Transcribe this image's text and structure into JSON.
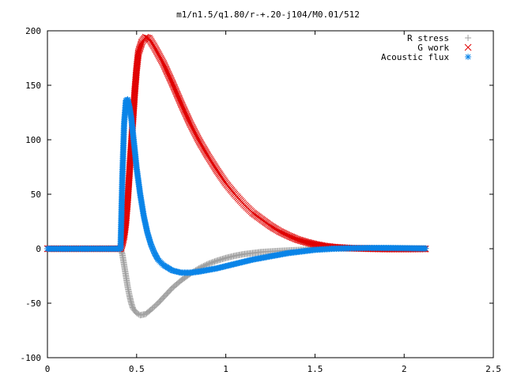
{
  "chart_data": {
    "type": "scatter",
    "title": "m1/n1.5/q1.80/r-+.20-j104/M0.01/512",
    "xlabel": "",
    "ylabel": "",
    "xlim": [
      0,
      2.5
    ],
    "ylim": [
      -100,
      200
    ],
    "x_ticks": [
      0,
      0.5,
      1,
      1.5,
      2,
      2.5
    ],
    "x_tick_labels": [
      "0",
      "0.5",
      "1",
      "1.5",
      "2",
      "2.5"
    ],
    "y_ticks": [
      -100,
      -50,
      0,
      50,
      100,
      150,
      200
    ],
    "y_tick_labels": [
      "-100",
      "-50",
      "0",
      "50",
      "100",
      "150",
      "200"
    ],
    "grid": false,
    "legend_position": "top-right",
    "series": [
      {
        "name": "R stress",
        "marker": "plus",
        "color": "#a0a0a0",
        "points": [
          [
            0.0,
            0
          ],
          [
            0.2,
            0
          ],
          [
            0.41,
            0
          ],
          [
            0.42,
            -5
          ],
          [
            0.43,
            -15
          ],
          [
            0.44,
            -25
          ],
          [
            0.45,
            -35
          ],
          [
            0.46,
            -43
          ],
          [
            0.47,
            -50
          ],
          [
            0.48,
            -55
          ],
          [
            0.5,
            -59
          ],
          [
            0.52,
            -61
          ],
          [
            0.55,
            -60
          ],
          [
            0.58,
            -56
          ],
          [
            0.62,
            -50
          ],
          [
            0.66,
            -43
          ],
          [
            0.7,
            -36
          ],
          [
            0.75,
            -29
          ],
          [
            0.8,
            -23
          ],
          [
            0.85,
            -18
          ],
          [
            0.9,
            -14
          ],
          [
            0.95,
            -11
          ],
          [
            1.0,
            -8.5
          ],
          [
            1.05,
            -6.5
          ],
          [
            1.1,
            -5
          ],
          [
            1.15,
            -4
          ],
          [
            1.2,
            -3
          ],
          [
            1.3,
            -2
          ],
          [
            1.4,
            -1.2
          ],
          [
            1.5,
            -0.5
          ],
          [
            1.6,
            0
          ],
          [
            1.7,
            0.3
          ],
          [
            1.8,
            0.4
          ],
          [
            1.9,
            0.4
          ],
          [
            2.0,
            0.3
          ],
          [
            2.1,
            0.2
          ],
          [
            2.12,
            0.2
          ]
        ]
      },
      {
        "name": "G work",
        "marker": "cross",
        "color": "#e00000",
        "points": [
          [
            0.0,
            0
          ],
          [
            0.2,
            0
          ],
          [
            0.41,
            0
          ],
          [
            0.42,
            5
          ],
          [
            0.43,
            12
          ],
          [
            0.44,
            25
          ],
          [
            0.45,
            45
          ],
          [
            0.46,
            70
          ],
          [
            0.47,
            95
          ],
          [
            0.48,
            120
          ],
          [
            0.49,
            145
          ],
          [
            0.5,
            165
          ],
          [
            0.51,
            180
          ],
          [
            0.53,
            190
          ],
          [
            0.55,
            194
          ],
          [
            0.57,
            193
          ],
          [
            0.6,
            185
          ],
          [
            0.65,
            170
          ],
          [
            0.7,
            152
          ],
          [
            0.75,
            133
          ],
          [
            0.8,
            115
          ],
          [
            0.85,
            99
          ],
          [
            0.9,
            85
          ],
          [
            0.95,
            72
          ],
          [
            1.0,
            60
          ],
          [
            1.05,
            50
          ],
          [
            1.1,
            41
          ],
          [
            1.15,
            33
          ],
          [
            1.2,
            27
          ],
          [
            1.25,
            21
          ],
          [
            1.3,
            16
          ],
          [
            1.35,
            12
          ],
          [
            1.4,
            8.5
          ],
          [
            1.45,
            6
          ],
          [
            1.5,
            4
          ],
          [
            1.55,
            2.5
          ],
          [
            1.6,
            1.5
          ],
          [
            1.7,
            0.5
          ],
          [
            1.8,
            0
          ],
          [
            1.9,
            -0.3
          ],
          [
            2.0,
            -0.3
          ],
          [
            2.1,
            -0.2
          ],
          [
            2.12,
            -0.2
          ]
        ]
      },
      {
        "name": "Acoustic flux",
        "marker": "star",
        "color": "#0a84e8",
        "points": [
          [
            0.0,
            0
          ],
          [
            0.2,
            0
          ],
          [
            0.41,
            0
          ],
          [
            0.42,
            66
          ],
          [
            0.43,
            115
          ],
          [
            0.44,
            136
          ],
          [
            0.45,
            137
          ],
          [
            0.46,
            130
          ],
          [
            0.47,
            120
          ],
          [
            0.48,
            105
          ],
          [
            0.49,
            90
          ],
          [
            0.5,
            74
          ],
          [
            0.52,
            50
          ],
          [
            0.54,
            30
          ],
          [
            0.56,
            15
          ],
          [
            0.58,
            4
          ],
          [
            0.6,
            -4
          ],
          [
            0.62,
            -10
          ],
          [
            0.65,
            -15
          ],
          [
            0.7,
            -20
          ],
          [
            0.75,
            -22
          ],
          [
            0.8,
            -22
          ],
          [
            0.85,
            -21
          ],
          [
            0.9,
            -19.5
          ],
          [
            0.95,
            -18
          ],
          [
            1.0,
            -16
          ],
          [
            1.05,
            -14
          ],
          [
            1.1,
            -12
          ],
          [
            1.15,
            -10
          ],
          [
            1.2,
            -8.5
          ],
          [
            1.25,
            -7
          ],
          [
            1.3,
            -5.5
          ],
          [
            1.35,
            -4
          ],
          [
            1.4,
            -3
          ],
          [
            1.45,
            -2
          ],
          [
            1.5,
            -1
          ],
          [
            1.6,
            0
          ],
          [
            1.7,
            0.5
          ],
          [
            1.8,
            0.7
          ],
          [
            1.9,
            0.7
          ],
          [
            2.0,
            0.5
          ],
          [
            2.1,
            0.3
          ],
          [
            2.12,
            0.3
          ]
        ]
      }
    ]
  }
}
